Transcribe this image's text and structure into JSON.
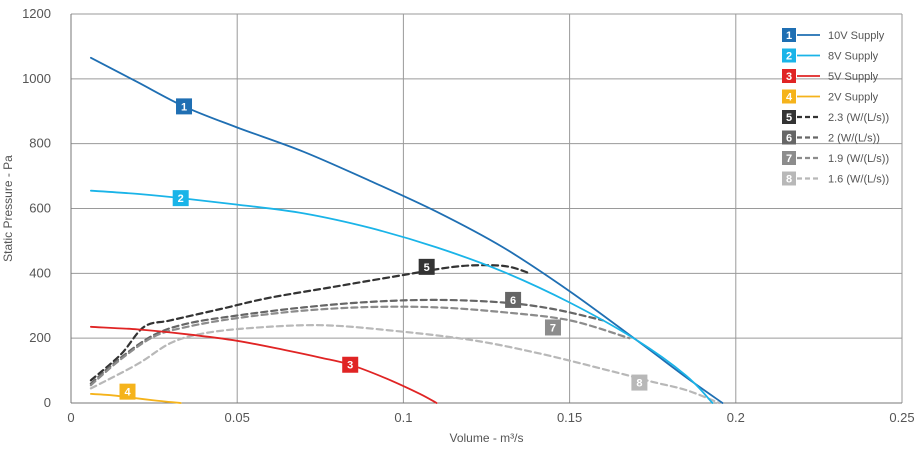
{
  "chart_data": {
    "type": "line",
    "title": "",
    "xlabel": "Volume - m³/s",
    "ylabel": "Static Pressure - Pa",
    "xlim": [
      0,
      0.25
    ],
    "ylim": [
      0,
      1200
    ],
    "xticks": [
      0,
      0.05,
      0.1,
      0.15,
      0.2,
      0.25
    ],
    "xtick_labels": [
      "0",
      "0.05",
      "0.1",
      "0.15",
      "0.2",
      "0.25"
    ],
    "yticks": [
      0,
      200,
      400,
      600,
      800,
      1000,
      1200
    ],
    "ytick_labels": [
      "0",
      "200",
      "400",
      "600",
      "800",
      "1000",
      "1200"
    ],
    "grid": true,
    "legend_position": "top-right",
    "series": [
      {
        "name": "10V Supply",
        "id": "1",
        "color": "#1f6fb3",
        "style": "solid",
        "marker_at": [
          0.034,
          915
        ],
        "points": [
          [
            0.006,
            1065
          ],
          [
            0.02,
            990
          ],
          [
            0.034,
            915
          ],
          [
            0.05,
            850
          ],
          [
            0.07,
            775
          ],
          [
            0.09,
            685
          ],
          [
            0.11,
            590
          ],
          [
            0.13,
            480
          ],
          [
            0.15,
            345
          ],
          [
            0.17,
            195
          ],
          [
            0.185,
            80
          ],
          [
            0.196,
            0
          ]
        ]
      },
      {
        "name": "8V Supply",
        "id": "2",
        "color": "#1ab4e8",
        "style": "solid",
        "marker_at": [
          0.033,
          632
        ],
        "points": [
          [
            0.006,
            655
          ],
          [
            0.02,
            645
          ],
          [
            0.033,
            632
          ],
          [
            0.05,
            612
          ],
          [
            0.07,
            585
          ],
          [
            0.09,
            540
          ],
          [
            0.11,
            480
          ],
          [
            0.13,
            405
          ],
          [
            0.15,
            310
          ],
          [
            0.17,
            195
          ],
          [
            0.185,
            85
          ],
          [
            0.193,
            0
          ]
        ]
      },
      {
        "name": "5V Supply",
        "id": "3",
        "color": "#e02424",
        "style": "solid",
        "marker_at": [
          0.084,
          118
        ],
        "points": [
          [
            0.006,
            235
          ],
          [
            0.02,
            227
          ],
          [
            0.035,
            212
          ],
          [
            0.05,
            192
          ],
          [
            0.065,
            162
          ],
          [
            0.075,
            140
          ],
          [
            0.084,
            118
          ],
          [
            0.095,
            75
          ],
          [
            0.105,
            28
          ],
          [
            0.11,
            0
          ]
        ]
      },
      {
        "name": "2V Supply",
        "id": "4",
        "color": "#f5b31b",
        "style": "solid",
        "marker_at": [
          0.017,
          35
        ],
        "points": [
          [
            0.006,
            28
          ],
          [
            0.012,
            24
          ],
          [
            0.017,
            18
          ],
          [
            0.025,
            8
          ],
          [
            0.033,
            0
          ]
        ]
      },
      {
        "name": "2.3 (W/(L/s))",
        "id": "5",
        "color": "#333333",
        "style": "dashed",
        "marker_at": [
          0.107,
          420
        ],
        "points": [
          [
            0.006,
            70
          ],
          [
            0.015,
            150
          ],
          [
            0.022,
            235
          ],
          [
            0.03,
            255
          ],
          [
            0.045,
            290
          ],
          [
            0.06,
            325
          ],
          [
            0.08,
            360
          ],
          [
            0.1,
            395
          ],
          [
            0.115,
            420
          ],
          [
            0.125,
            425
          ],
          [
            0.132,
            420
          ],
          [
            0.138,
            400
          ]
        ]
      },
      {
        "name": "2 (W/(L/s))",
        "id": "6",
        "color": "#666666",
        "style": "dashed",
        "marker_at": [
          0.133,
          318
        ],
        "points": [
          [
            0.006,
            60
          ],
          [
            0.015,
            140
          ],
          [
            0.025,
            210
          ],
          [
            0.035,
            245
          ],
          [
            0.05,
            270
          ],
          [
            0.07,
            295
          ],
          [
            0.09,
            312
          ],
          [
            0.11,
            318
          ],
          [
            0.13,
            310
          ],
          [
            0.145,
            290
          ],
          [
            0.16,
            255
          ]
        ]
      },
      {
        "name": "1.9 (W/(L/s))",
        "id": "7",
        "color": "#8c8c8c",
        "style": "dashed",
        "marker_at": [
          0.145,
          233
        ],
        "points": [
          [
            0.006,
            55
          ],
          [
            0.015,
            135
          ],
          [
            0.025,
            205
          ],
          [
            0.035,
            235
          ],
          [
            0.05,
            262
          ],
          [
            0.07,
            285
          ],
          [
            0.09,
            296
          ],
          [
            0.11,
            295
          ],
          [
            0.13,
            280
          ],
          [
            0.15,
            255
          ],
          [
            0.168,
            200
          ]
        ]
      },
      {
        "name": "1.6 (W/(L/s))",
        "id": "8",
        "color": "#b8b8b8",
        "style": "dashed",
        "marker_at": [
          0.171,
          63
        ],
        "points": [
          [
            0.006,
            45
          ],
          [
            0.02,
            120
          ],
          [
            0.03,
            185
          ],
          [
            0.04,
            215
          ],
          [
            0.055,
            232
          ],
          [
            0.075,
            240
          ],
          [
            0.095,
            225
          ],
          [
            0.12,
            195
          ],
          [
            0.14,
            155
          ],
          [
            0.16,
            105
          ],
          [
            0.175,
            65
          ],
          [
            0.185,
            40
          ],
          [
            0.195,
            0
          ]
        ]
      }
    ]
  }
}
